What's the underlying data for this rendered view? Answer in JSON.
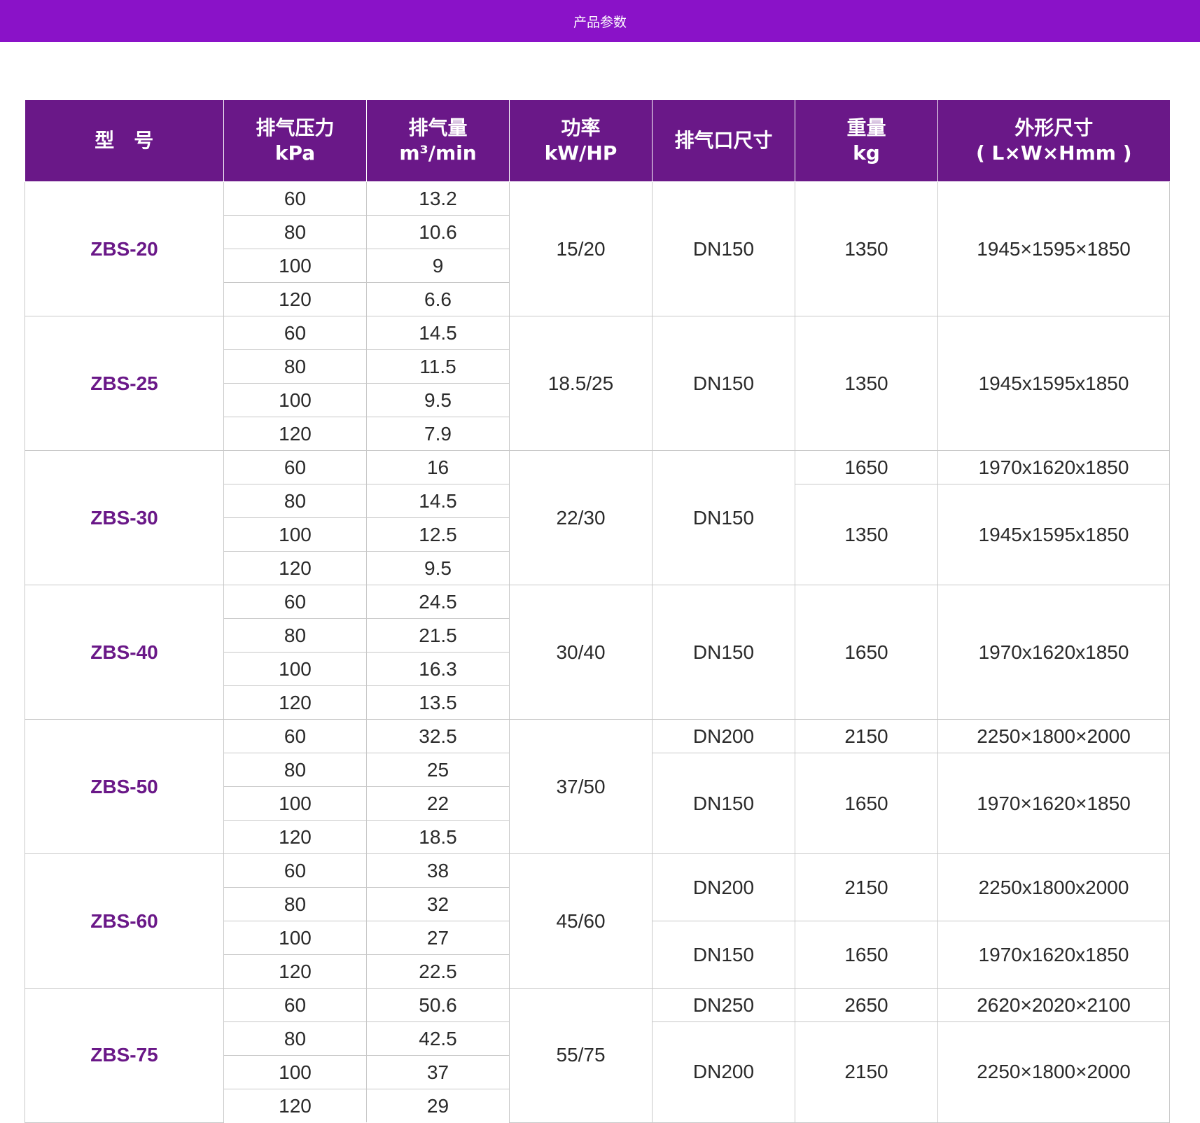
{
  "header": {
    "title": "产品参数"
  },
  "table": {
    "columns": [
      "型　号",
      "排气压力\nkPa",
      "排气量\nm³/min",
      "功率\nkW/HP",
      "排气口尺寸",
      "重量\nkg",
      "外形尺寸\n( L×W×Hmm )"
    ],
    "models": [
      {
        "model": "ZBS-20",
        "power": "15/20",
        "rows": [
          [
            "60",
            "13.2"
          ],
          [
            "80",
            "10.6"
          ],
          [
            "100",
            "9"
          ],
          [
            "120",
            "6.6"
          ]
        ],
        "groups": [
          {
            "span": 4,
            "outlet": "DN150",
            "weight": "1350",
            "dims": "1945×1595×1850"
          }
        ]
      },
      {
        "model": "ZBS-25",
        "power": "18.5/25",
        "rows": [
          [
            "60",
            "14.5"
          ],
          [
            "80",
            "11.5"
          ],
          [
            "100",
            "9.5"
          ],
          [
            "120",
            "7.9"
          ]
        ],
        "groups": [
          {
            "span": 4,
            "outlet": "DN150",
            "weight": "1350",
            "dims": "1945x1595x1850"
          }
        ]
      },
      {
        "model": "ZBS-30",
        "power": "22/30",
        "rows": [
          [
            "60",
            "16"
          ],
          [
            "80",
            "14.5"
          ],
          [
            "100",
            "12.5"
          ],
          [
            "120",
            "9.5"
          ]
        ],
        "outlet_merged": "DN150",
        "groups": [
          {
            "span": 1,
            "weight": "1650",
            "dims": "1970x1620x1850"
          },
          {
            "span": 3,
            "weight": "1350",
            "dims": "1945x1595x1850"
          }
        ]
      },
      {
        "model": "ZBS-40",
        "power": "30/40",
        "rows": [
          [
            "60",
            "24.5"
          ],
          [
            "80",
            "21.5"
          ],
          [
            "100",
            "16.3"
          ],
          [
            "120",
            "13.5"
          ]
        ],
        "groups": [
          {
            "span": 4,
            "outlet": "DN150",
            "weight": "1650",
            "dims": "1970x1620x1850"
          }
        ]
      },
      {
        "model": "ZBS-50",
        "power": "37/50",
        "rows": [
          [
            "60",
            "32.5"
          ],
          [
            "80",
            "25"
          ],
          [
            "100",
            "22"
          ],
          [
            "120",
            "18.5"
          ]
        ],
        "groups": [
          {
            "span": 1,
            "outlet": "DN200",
            "weight": "2150",
            "dims": "2250×1800×2000"
          },
          {
            "span": 3,
            "outlet": "DN150",
            "weight": "1650",
            "dims": "1970×1620×1850"
          }
        ]
      },
      {
        "model": "ZBS-60",
        "power": "45/60",
        "rows": [
          [
            "60",
            "38"
          ],
          [
            "80",
            "32"
          ],
          [
            "100",
            "27"
          ],
          [
            "120",
            "22.5"
          ]
        ],
        "groups": [
          {
            "span": 2,
            "outlet": "DN200",
            "weight": "2150",
            "dims": "2250x1800x2000"
          },
          {
            "span": 2,
            "outlet": "DN150",
            "weight": "1650",
            "dims": "1970x1620x1850"
          }
        ]
      },
      {
        "model": "ZBS-75",
        "power": "55/75",
        "rows": [
          [
            "60",
            "50.6"
          ],
          [
            "80",
            "42.5"
          ],
          [
            "100",
            "37"
          ],
          [
            "120",
            "29"
          ]
        ],
        "groups": [
          {
            "span": 1,
            "outlet": "DN250",
            "weight": "2650",
            "dims": "2620×2020×2100"
          },
          {
            "span": 3,
            "outlet": "DN200",
            "weight": "2150",
            "dims": "2250×1800×2000"
          }
        ]
      }
    ]
  }
}
